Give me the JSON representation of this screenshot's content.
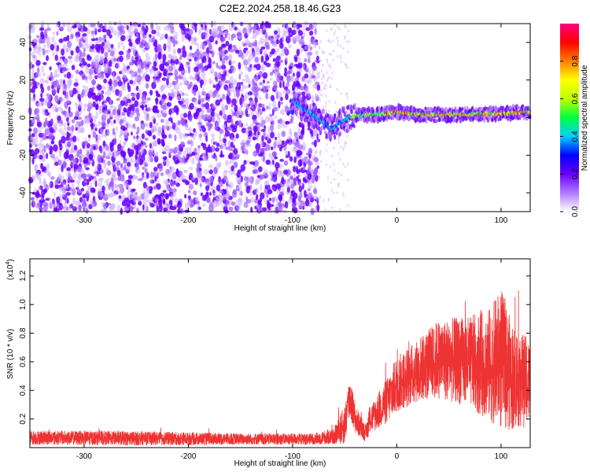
{
  "chart_data": [
    {
      "type": "heatmap",
      "title": "C2E2.2024.258.18.46.G23",
      "xlabel": "Height of straight line (km)",
      "ylabel": "Frequency (Hz)",
      "xlim": [
        -352,
        128
      ],
      "ylim": [
        -50,
        50
      ],
      "xticks": [
        -300,
        -200,
        -100,
        0,
        100
      ],
      "xtick_labels": [
        "-300",
        "-200",
        "-100",
        "0",
        "100"
      ],
      "yticks": [
        40,
        20,
        0,
        -20,
        -40
      ],
      "ytick_labels": [
        "40",
        "20",
        "0",
        "-20",
        "-40"
      ],
      "noise_region_x": [
        -352,
        -75
      ],
      "signal_ridge": [
        {
          "x": -100,
          "y": 9
        },
        {
          "x": -90,
          "y": 5
        },
        {
          "x": -80,
          "y": 1
        },
        {
          "x": -70,
          "y": -3
        },
        {
          "x": -62,
          "y": -6
        },
        {
          "x": -50,
          "y": -1
        },
        {
          "x": -40,
          "y": 1
        },
        {
          "x": -20,
          "y": 1.5
        },
        {
          "x": 0,
          "y": 3
        },
        {
          "x": 20,
          "y": 1.5
        },
        {
          "x": 50,
          "y": 1.5
        },
        {
          "x": 80,
          "y": 2
        },
        {
          "x": 100,
          "y": 2
        },
        {
          "x": 128,
          "y": 3
        }
      ],
      "colorbar": {
        "label": "Normalized spectral amplitude",
        "range": [
          0,
          1
        ],
        "ticks": [
          0,
          0.2,
          0.4,
          0.6,
          0.8
        ],
        "tick_labels": [
          "0.0",
          "0.2",
          "0.4",
          "0.6",
          "0.8"
        ],
        "colors": [
          "#ffffff",
          "#b079ff",
          "#6a00ff",
          "#0000ff",
          "#00d0ff",
          "#00ff40",
          "#c0ff00",
          "#ffff00",
          "#ff8000",
          "#ff0000",
          "#ff0080"
        ]
      }
    },
    {
      "type": "line",
      "title": "",
      "xlabel": "Height of straight line (km)",
      "ylabel": "SNR (10 * v/v)",
      "y_multiplier": "(x10",
      "y_multiplier_exp": "4",
      "y_multiplier_close": ")",
      "xlim": [
        -352,
        128
      ],
      "ylim": [
        0,
        1.32
      ],
      "xticks": [
        -300,
        -200,
        -100,
        0,
        100
      ],
      "xtick_labels": [
        "-300",
        "-200",
        "-100",
        "0",
        "100"
      ],
      "yticks": [
        0.2,
        0.4,
        0.6,
        0.8,
        1.0,
        1.2
      ],
      "ytick_labels": [
        "0.2",
        "0.4",
        "0.6",
        "0.8",
        "1.0",
        "1.2"
      ],
      "series": [
        {
          "name": "SNR",
          "color": "#ee3333",
          "envelope": [
            {
              "x": -352,
              "base": 0.07,
              "amp": 0.05
            },
            {
              "x": -250,
              "base": 0.065,
              "amp": 0.05
            },
            {
              "x": -150,
              "base": 0.06,
              "amp": 0.04
            },
            {
              "x": -80,
              "base": 0.06,
              "amp": 0.04
            },
            {
              "x": -60,
              "base": 0.08,
              "amp": 0.06
            },
            {
              "x": -50,
              "base": 0.16,
              "amp": 0.14
            },
            {
              "x": -45,
              "base": 0.36,
              "amp": 0.16
            },
            {
              "x": -40,
              "base": 0.2,
              "amp": 0.1
            },
            {
              "x": -30,
              "base": 0.1,
              "amp": 0.06
            },
            {
              "x": -25,
              "base": 0.2,
              "amp": 0.1
            },
            {
              "x": -10,
              "base": 0.32,
              "amp": 0.16
            },
            {
              "x": 0,
              "base": 0.44,
              "amp": 0.2
            },
            {
              "x": 20,
              "base": 0.54,
              "amp": 0.22
            },
            {
              "x": 40,
              "base": 0.62,
              "amp": 0.28
            },
            {
              "x": 70,
              "base": 0.6,
              "amp": 0.32
            },
            {
              "x": 90,
              "base": 0.58,
              "amp": 0.4
            },
            {
              "x": 100,
              "base": 0.62,
              "amp": 0.5
            },
            {
              "x": 110,
              "base": 0.5,
              "amp": 0.38
            },
            {
              "x": 128,
              "base": 0.45,
              "amp": 0.3
            }
          ]
        }
      ]
    }
  ]
}
